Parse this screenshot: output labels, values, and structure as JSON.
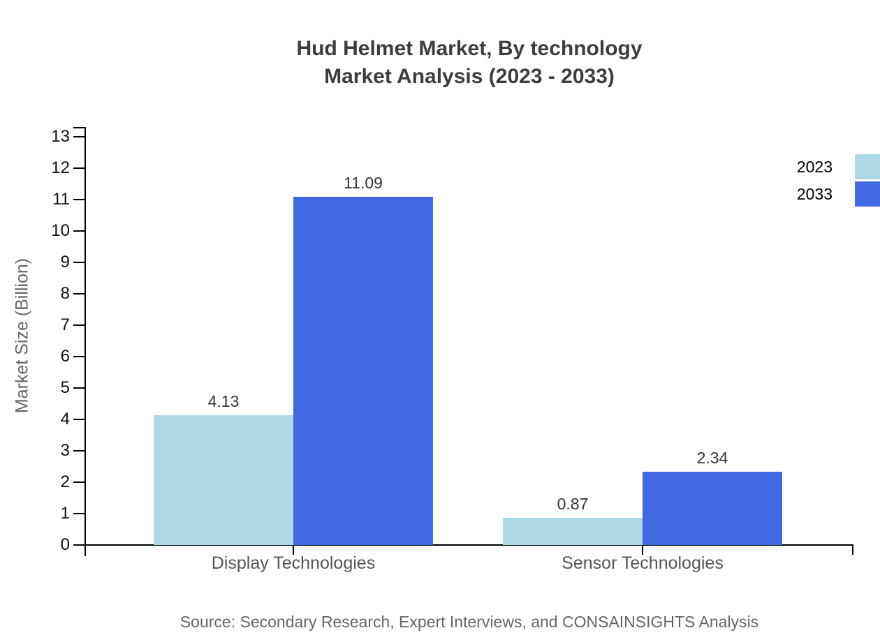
{
  "title": {
    "line1": "Hud Helmet Market, By technology",
    "line2": "Market Analysis (2023 - 2033)"
  },
  "source": "Source: Secondary Research, Expert Interviews, and CONSAINSIGHTS Analysis",
  "chart_data": {
    "type": "bar",
    "title": "Hud Helmet Market, By technology Market Analysis (2023 - 2033)",
    "categories": [
      "Display Technologies",
      "Sensor Technologies"
    ],
    "series": [
      {
        "name": "2023",
        "color": "#ADD8E6",
        "values": [
          4.13,
          0.87
        ]
      },
      {
        "name": "2033",
        "color": "#4169E1",
        "values": [
          11.09,
          2.34
        ]
      }
    ],
    "xlabel": "",
    "ylabel": "Market Size (Billion)",
    "ylim": [
      0,
      13
    ],
    "yticks": [
      0,
      1,
      2,
      3,
      4,
      5,
      6,
      7,
      8,
      9,
      10,
      11,
      12,
      13
    ],
    "grid": false,
    "legend_position": "top-right",
    "value_label_format": "2-decimals"
  },
  "colors": {
    "axis": "#000000",
    "title_text": "#3d3d3d",
    "tick_label_text": "#111111",
    "category_label_text": "#555555",
    "value_label_text": "#333333",
    "muted_text": "#666666",
    "series_2023": "#ADD8E6",
    "series_2033": "#4169E1",
    "background": "#ffffff"
  }
}
